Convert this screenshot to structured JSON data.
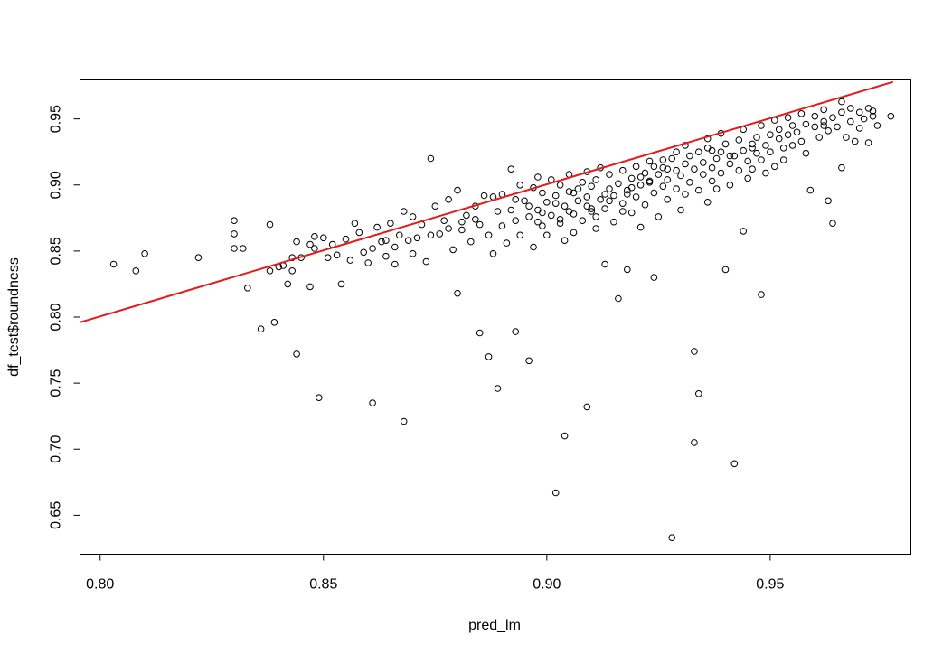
{
  "chart_data": {
    "type": "scatter",
    "title": "",
    "xlabel": "pred_lm",
    "ylabel": "df_test$roundness",
    "xlim": [
      0.7955,
      0.9815
    ],
    "ylim": [
      0.6205,
      0.9795
    ],
    "x_ticks": [
      0.8,
      0.85,
      0.9,
      0.95
    ],
    "x_tick_labels": [
      "0.80",
      "0.85",
      "0.90",
      "0.95"
    ],
    "y_ticks": [
      0.65,
      0.7,
      0.75,
      0.8,
      0.85,
      0.9,
      0.95
    ],
    "y_tick_labels": [
      "0.65",
      "0.70",
      "0.75",
      "0.80",
      "0.85",
      "0.90",
      "0.95"
    ],
    "grid": false,
    "marker": "open-circle",
    "point_color": "#000000",
    "fit_line": {
      "color": "#e41a1c",
      "start": [
        0.7955,
        0.796
      ],
      "end": [
        0.9775,
        0.978
      ]
    },
    "points": [
      [
        0.803,
        0.84
      ],
      [
        0.808,
        0.835
      ],
      [
        0.81,
        0.848
      ],
      [
        0.822,
        0.845
      ],
      [
        0.83,
        0.863
      ],
      [
        0.83,
        0.873
      ],
      [
        0.83,
        0.852
      ],
      [
        0.832,
        0.852
      ],
      [
        0.833,
        0.822
      ],
      [
        0.836,
        0.791
      ],
      [
        0.838,
        0.87
      ],
      [
        0.838,
        0.835
      ],
      [
        0.839,
        0.796
      ],
      [
        0.84,
        0.838
      ],
      [
        0.841,
        0.839
      ],
      [
        0.842,
        0.825
      ],
      [
        0.843,
        0.835
      ],
      [
        0.843,
        0.845
      ],
      [
        0.844,
        0.857
      ],
      [
        0.844,
        0.772
      ],
      [
        0.845,
        0.845
      ],
      [
        0.847,
        0.855
      ],
      [
        0.847,
        0.823
      ],
      [
        0.848,
        0.861
      ],
      [
        0.848,
        0.852
      ],
      [
        0.849,
        0.739
      ],
      [
        0.85,
        0.86
      ],
      [
        0.851,
        0.845
      ],
      [
        0.852,
        0.855
      ],
      [
        0.853,
        0.847
      ],
      [
        0.854,
        0.825
      ],
      [
        0.855,
        0.859
      ],
      [
        0.856,
        0.843
      ],
      [
        0.857,
        0.871
      ],
      [
        0.858,
        0.864
      ],
      [
        0.859,
        0.849
      ],
      [
        0.86,
        0.841
      ],
      [
        0.861,
        0.735
      ],
      [
        0.862,
        0.868
      ],
      [
        0.864,
        0.846
      ],
      [
        0.864,
        0.858
      ],
      [
        0.865,
        0.871
      ],
      [
        0.866,
        0.84
      ],
      [
        0.867,
        0.862
      ],
      [
        0.868,
        0.88
      ],
      [
        0.868,
        0.721
      ],
      [
        0.87,
        0.876
      ],
      [
        0.87,
        0.848
      ],
      [
        0.871,
        0.86
      ],
      [
        0.872,
        0.87
      ],
      [
        0.873,
        0.842
      ],
      [
        0.874,
        0.92
      ],
      [
        0.875,
        0.884
      ],
      [
        0.876,
        0.863
      ],
      [
        0.877,
        0.873
      ],
      [
        0.878,
        0.889
      ],
      [
        0.879,
        0.851
      ],
      [
        0.88,
        0.896
      ],
      [
        0.88,
        0.818
      ],
      [
        0.881,
        0.866
      ],
      [
        0.882,
        0.877
      ],
      [
        0.883,
        0.857
      ],
      [
        0.884,
        0.884
      ],
      [
        0.885,
        0.87
      ],
      [
        0.885,
        0.788
      ],
      [
        0.886,
        0.892
      ],
      [
        0.887,
        0.862
      ],
      [
        0.887,
        0.77
      ],
      [
        0.888,
        0.848
      ],
      [
        0.889,
        0.88
      ],
      [
        0.889,
        0.746
      ],
      [
        0.89,
        0.869
      ],
      [
        0.89,
        0.893
      ],
      [
        0.891,
        0.856
      ],
      [
        0.892,
        0.881
      ],
      [
        0.892,
        0.912
      ],
      [
        0.893,
        0.873
      ],
      [
        0.893,
        0.789
      ],
      [
        0.894,
        0.9
      ],
      [
        0.894,
        0.862
      ],
      [
        0.895,
        0.888
      ],
      [
        0.896,
        0.767
      ],
      [
        0.896,
        0.876
      ],
      [
        0.897,
        0.898
      ],
      [
        0.897,
        0.853
      ],
      [
        0.898,
        0.906
      ],
      [
        0.898,
        0.881
      ],
      [
        0.899,
        0.869
      ],
      [
        0.899,
        0.894
      ],
      [
        0.9,
        0.887
      ],
      [
        0.9,
        0.862
      ],
      [
        0.901,
        0.904
      ],
      [
        0.901,
        0.877
      ],
      [
        0.902,
        0.892
      ],
      [
        0.902,
        0.667
      ],
      [
        0.903,
        0.871
      ],
      [
        0.903,
        0.9
      ],
      [
        0.904,
        0.884
      ],
      [
        0.904,
        0.858
      ],
      [
        0.904,
        0.71
      ],
      [
        0.905,
        0.895
      ],
      [
        0.905,
        0.908
      ],
      [
        0.906,
        0.878
      ],
      [
        0.906,
        0.864
      ],
      [
        0.907,
        0.897
      ],
      [
        0.907,
        0.888
      ],
      [
        0.908,
        0.902
      ],
      [
        0.908,
        0.873
      ],
      [
        0.909,
        0.891
      ],
      [
        0.909,
        0.732
      ],
      [
        0.909,
        0.91
      ],
      [
        0.91,
        0.88
      ],
      [
        0.91,
        0.899
      ],
      [
        0.911,
        0.867
      ],
      [
        0.911,
        0.904
      ],
      [
        0.912,
        0.889
      ],
      [
        0.912,
        0.913
      ],
      [
        0.913,
        0.882
      ],
      [
        0.913,
        0.84
      ],
      [
        0.914,
        0.897
      ],
      [
        0.914,
        0.908
      ],
      [
        0.915,
        0.872
      ],
      [
        0.915,
        0.892
      ],
      [
        0.916,
        0.901
      ],
      [
        0.916,
        0.814
      ],
      [
        0.917,
        0.886
      ],
      [
        0.917,
        0.911
      ],
      [
        0.918,
        0.896
      ],
      [
        0.918,
        0.836
      ],
      [
        0.919,
        0.879
      ],
      [
        0.919,
        0.905
      ],
      [
        0.92,
        0.914
      ],
      [
        0.92,
        0.891
      ],
      [
        0.921,
        0.9
      ],
      [
        0.921,
        0.868
      ],
      [
        0.922,
        0.909
      ],
      [
        0.922,
        0.885
      ],
      [
        0.923,
        0.903
      ],
      [
        0.923,
        0.918
      ],
      [
        0.924,
        0.894
      ],
      [
        0.924,
        0.83
      ],
      [
        0.925,
        0.908
      ],
      [
        0.925,
        0.876
      ],
      [
        0.926,
        0.899
      ],
      [
        0.926,
        0.913
      ],
      [
        0.927,
        0.889
      ],
      [
        0.927,
        0.904
      ],
      [
        0.928,
        0.92
      ],
      [
        0.928,
        0.633
      ],
      [
        0.929,
        0.897
      ],
      [
        0.929,
        0.911
      ],
      [
        0.93,
        0.881
      ],
      [
        0.93,
        0.907
      ],
      [
        0.931,
        0.916
      ],
      [
        0.931,
        0.893
      ],
      [
        0.932,
        0.922
      ],
      [
        0.932,
        0.902
      ],
      [
        0.933,
        0.912
      ],
      [
        0.933,
        0.774
      ],
      [
        0.933,
        0.705
      ],
      [
        0.934,
        0.896
      ],
      [
        0.934,
        0.925
      ],
      [
        0.934,
        0.742
      ],
      [
        0.935,
        0.908
      ],
      [
        0.935,
        0.917
      ],
      [
        0.936,
        0.887
      ],
      [
        0.936,
        0.928
      ],
      [
        0.937,
        0.903
      ],
      [
        0.937,
        0.913
      ],
      [
        0.938,
        0.92
      ],
      [
        0.938,
        0.897
      ],
      [
        0.939,
        0.925
      ],
      [
        0.939,
        0.909
      ],
      [
        0.94,
        0.836
      ],
      [
        0.94,
        0.931
      ],
      [
        0.941,
        0.916
      ],
      [
        0.941,
        0.9
      ],
      [
        0.942,
        0.689
      ],
      [
        0.942,
        0.922
      ],
      [
        0.943,
        0.911
      ],
      [
        0.943,
        0.934
      ],
      [
        0.944,
        0.865
      ],
      [
        0.944,
        0.926
      ],
      [
        0.945,
        0.918
      ],
      [
        0.945,
        0.905
      ],
      [
        0.946,
        0.931
      ],
      [
        0.946,
        0.912
      ],
      [
        0.947,
        0.924
      ],
      [
        0.947,
        0.936
      ],
      [
        0.948,
        0.817
      ],
      [
        0.948,
        0.919
      ],
      [
        0.949,
        0.93
      ],
      [
        0.949,
        0.909
      ],
      [
        0.95,
        0.938
      ],
      [
        0.95,
        0.925
      ],
      [
        0.951,
        0.914
      ],
      [
        0.952,
        0.935
      ],
      [
        0.952,
        0.942
      ],
      [
        0.953,
        0.928
      ],
      [
        0.953,
        0.919
      ],
      [
        0.954,
        0.938
      ],
      [
        0.955,
        0.945
      ],
      [
        0.955,
        0.93
      ],
      [
        0.956,
        0.94
      ],
      [
        0.957,
        0.933
      ],
      [
        0.958,
        0.946
      ],
      [
        0.958,
        0.924
      ],
      [
        0.959,
        0.896
      ],
      [
        0.96,
        0.944
      ],
      [
        0.96,
        0.952
      ],
      [
        0.961,
        0.936
      ],
      [
        0.962,
        0.948
      ],
      [
        0.962,
        0.957
      ],
      [
        0.963,
        0.941
      ],
      [
        0.963,
        0.888
      ],
      [
        0.964,
        0.871
      ],
      [
        0.964,
        0.951
      ],
      [
        0.965,
        0.944
      ],
      [
        0.966,
        0.913
      ],
      [
        0.966,
        0.955
      ],
      [
        0.967,
        0.936
      ],
      [
        0.968,
        0.958
      ],
      [
        0.968,
        0.948
      ],
      [
        0.969,
        0.933
      ],
      [
        0.97,
        0.955
      ],
      [
        0.97,
        0.943
      ],
      [
        0.971,
        0.95
      ],
      [
        0.972,
        0.958
      ],
      [
        0.972,
        0.932
      ],
      [
        0.973,
        0.952
      ],
      [
        0.973,
        0.956
      ],
      [
        0.974,
        0.945
      ],
      [
        0.962,
        0.945
      ],
      [
        0.966,
        0.963
      ],
      [
        0.977,
        0.952
      ],
      [
        0.917,
        0.88
      ],
      [
        0.911,
        0.876
      ],
      [
        0.898,
        0.872
      ],
      [
        0.902,
        0.886
      ],
      [
        0.906,
        0.894
      ],
      [
        0.909,
        0.884
      ],
      [
        0.913,
        0.893
      ],
      [
        0.919,
        0.898
      ],
      [
        0.921,
        0.906
      ],
      [
        0.924,
        0.914
      ],
      [
        0.926,
        0.919
      ],
      [
        0.929,
        0.925
      ],
      [
        0.931,
        0.93
      ],
      [
        0.936,
        0.935
      ],
      [
        0.939,
        0.939
      ],
      [
        0.944,
        0.942
      ],
      [
        0.948,
        0.945
      ],
      [
        0.951,
        0.949
      ],
      [
        0.954,
        0.951
      ],
      [
        0.957,
        0.954
      ],
      [
        0.946,
        0.928
      ],
      [
        0.941,
        0.922
      ],
      [
        0.937,
        0.926
      ],
      [
        0.927,
        0.912
      ],
      [
        0.923,
        0.902
      ],
      [
        0.918,
        0.893
      ],
      [
        0.914,
        0.888
      ],
      [
        0.91,
        0.882
      ],
      [
        0.905,
        0.88
      ],
      [
        0.903,
        0.874
      ],
      [
        0.899,
        0.879
      ],
      [
        0.896,
        0.884
      ],
      [
        0.893,
        0.889
      ],
      [
        0.888,
        0.891
      ],
      [
        0.884,
        0.874
      ],
      [
        0.881,
        0.872
      ],
      [
        0.878,
        0.867
      ],
      [
        0.874,
        0.862
      ],
      [
        0.869,
        0.858
      ],
      [
        0.866,
        0.853
      ],
      [
        0.863,
        0.857
      ],
      [
        0.861,
        0.852
      ]
    ]
  }
}
